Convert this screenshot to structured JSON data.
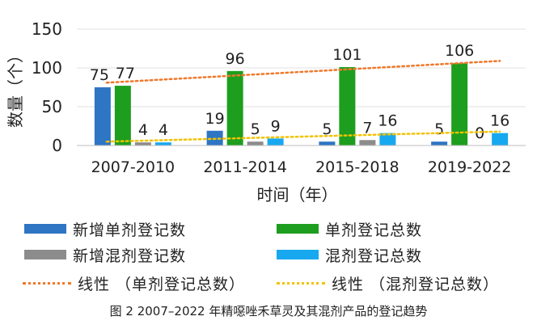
{
  "chart_data": {
    "type": "bar",
    "ylabel": "数量（个）",
    "xlabel": "时间（年）",
    "ylim": [
      0,
      150
    ],
    "yticks": [
      0,
      50,
      100,
      150
    ],
    "categories": [
      "2007-2010",
      "2011-2014",
      "2015-2018",
      "2019-2022"
    ],
    "series": [
      {
        "name": "新增单剂登记数",
        "color": "#2E75C4",
        "values": [
          75,
          19,
          5,
          5
        ],
        "labels": [
          "75",
          "19",
          "5",
          "5"
        ]
      },
      {
        "name": "单剂登记总数",
        "color": "#1E9E1E",
        "values": [
          77,
          96,
          101,
          106
        ],
        "labels": [
          "77",
          "96",
          "101",
          "106"
        ]
      },
      {
        "name": "新增混剂登记数",
        "color": "#8C8C8C",
        "values": [
          4,
          5,
          7,
          0
        ],
        "labels": [
          "4",
          "5",
          "7",
          "0"
        ]
      },
      {
        "name": "混剂登记总数",
        "color": "#17A8F0",
        "values": [
          4,
          9,
          16,
          16
        ],
        "labels": [
          "4",
          "9",
          "16",
          "16"
        ]
      }
    ],
    "trendlines": [
      {
        "name": "线性 （单剂登记总数）",
        "color": "#F0782A",
        "from": 81,
        "to": 109
      },
      {
        "name": "线性 （混剂登记总数）",
        "color": "#F2C200",
        "from": 5,
        "to": 18
      }
    ],
    "caption": "图 2  2007–2022 年精噁唑禾草灵及其混剂产品的登记趋势"
  }
}
